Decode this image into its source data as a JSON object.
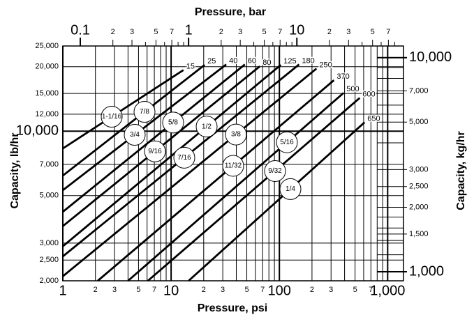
{
  "chart_data": {
    "type": "line",
    "title": "Pressure, bar",
    "x_label": "Pressure, psi",
    "y_label": "Capacity, lb/hr",
    "y2_label": "Capacity, kg/hr",
    "log_scale": true,
    "grid": true,
    "line_color": "#000000",
    "xlim": [
      1,
      1400
    ],
    "xticks": [
      1,
      2,
      3,
      5,
      7,
      10,
      {
        "value": 20,
        "label": "2"
      },
      {
        "value": 30,
        "label": "3"
      },
      {
        "value": 50,
        "label": "5"
      },
      {
        "value": 70,
        "label": "7"
      },
      100,
      {
        "value": 200,
        "label": "2"
      },
      {
        "value": 300,
        "label": "3"
      },
      {
        "value": 500,
        "label": "5"
      },
      {
        "value": 700,
        "label": "7"
      },
      {
        "value": 1000,
        "label": "1,000"
      }
    ],
    "xminor": [
      4,
      6,
      8,
      9,
      40,
      60,
      80,
      90,
      400,
      600,
      800,
      900
    ],
    "x2lim": [
      0.069,
      96.5
    ],
    "x2ticks": [
      0.1,
      {
        "value": 0.2,
        "label": "2"
      },
      {
        "value": 0.3,
        "label": "3"
      },
      {
        "value": 0.5,
        "label": "5"
      },
      {
        "value": 0.7,
        "label": "7"
      },
      1,
      2,
      3,
      5,
      7,
      10,
      {
        "value": 20,
        "label": "2"
      },
      {
        "value": 30,
        "label": "3"
      },
      {
        "value": 50,
        "label": "5"
      },
      {
        "value": 70,
        "label": "7"
      }
    ],
    "x2minor": [
      0.4,
      0.6,
      0.8,
      0.9,
      4,
      6,
      8,
      9,
      40,
      60,
      80
    ],
    "ylim": [
      2000,
      25000
    ],
    "yticks": [
      {
        "value": 2000,
        "label": "2,000"
      },
      {
        "value": 2500,
        "label": "2,500"
      },
      {
        "value": 3000,
        "label": "3,000"
      },
      {
        "value": 5000,
        "label": "5,000"
      },
      {
        "value": 7000,
        "label": "7,000"
      },
      {
        "value": 10000,
        "label": "10,000"
      },
      {
        "value": 12000,
        "label": "12,000"
      },
      {
        "value": 15000,
        "label": "15,000"
      },
      {
        "value": 20000,
        "label": "20,000"
      },
      {
        "value": 25000,
        "label": "25,000"
      }
    ],
    "y2lim": [
      907,
      11340
    ],
    "y2ticks": [
      {
        "value": 1000,
        "label": "1,000"
      },
      {
        "value": 1500,
        "label": "1,500"
      },
      {
        "value": 2000,
        "label": "2,000"
      },
      {
        "value": 2500,
        "label": "2,500"
      },
      {
        "value": 3000,
        "label": "3,000"
      },
      {
        "value": 5000,
        "label": "5,000"
      },
      {
        "value": 7000,
        "label": "7,000"
      },
      {
        "value": 10000,
        "label": "10,000"
      }
    ],
    "y2minor": [
      1200,
      1400,
      1600,
      1800,
      4000,
      6000,
      8000,
      9000
    ],
    "series": [
      {
        "name": "1-1/16",
        "end_label": "15",
        "x": [
          1,
          13
        ],
        "values": [
          8300,
          19300
        ]
      },
      {
        "name": "7/8",
        "end_label": "25",
        "x": [
          1,
          20.4
        ],
        "values": [
          6200,
          20400
        ]
      },
      {
        "name": "3/4",
        "end_label": "40",
        "x": [
          1,
          32.3
        ],
        "values": [
          5300,
          20500
        ]
      },
      {
        "name": "5/8",
        "end_label": "60",
        "x": [
          1,
          48
        ],
        "values": [
          4200,
          20500
        ]
      },
      {
        "name": "9/16",
        "end_label": "80",
        "x": [
          1,
          66
        ],
        "values": [
          3600,
          20100
        ]
      },
      {
        "name": "1/2",
        "end_label": "125",
        "x": [
          1,
          103
        ],
        "values": [
          2900,
          20400
        ]
      },
      {
        "name": "7/16",
        "end_label": "180",
        "x": [
          1,
          152
        ],
        "values": [
          2600,
          20500
        ]
      },
      {
        "name": "3/8",
        "end_label": "250",
        "x": [
          1,
          220
        ],
        "values": [
          2100,
          19600
        ]
      },
      {
        "name": "11/32",
        "end_label": "370",
        "x": [
          2.1,
          319
        ],
        "values": [
          2000,
          17300
        ]
      },
      {
        "name": "5/16",
        "end_label": "500",
        "x": [
          4,
          392
        ],
        "values": [
          2000,
          15100
        ]
      },
      {
        "name": "9/32",
        "end_label": "600",
        "x": [
          6.1,
          552
        ],
        "values": [
          2000,
          14300
        ]
      },
      {
        "name": "1/4",
        "end_label": "650",
        "x": [
          14.5,
          612
        ],
        "values": [
          2000,
          11000
        ]
      }
    ]
  }
}
